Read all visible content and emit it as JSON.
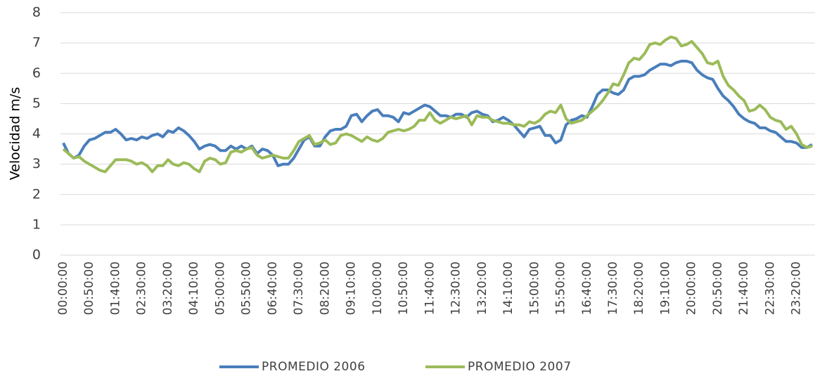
{
  "chart_data": {
    "type": "line",
    "y_label": "Velocidad m/s",
    "categories": [
      "00:00:00",
      null,
      null,
      null,
      null,
      "00:50:00",
      null,
      null,
      null,
      null,
      "01:40:00",
      null,
      null,
      null,
      null,
      "02:30:00",
      null,
      null,
      null,
      null,
      "03:20:00",
      null,
      null,
      null,
      null,
      "04:10:00",
      null,
      null,
      null,
      null,
      "05:00:00",
      null,
      null,
      null,
      null,
      "05:50:00",
      null,
      null,
      null,
      null,
      "06:40:00",
      null,
      null,
      null,
      null,
      "07:30:00",
      null,
      null,
      null,
      null,
      "08:20:00",
      null,
      null,
      null,
      null,
      "09:10:00",
      null,
      null,
      null,
      null,
      "10:00:00",
      null,
      null,
      null,
      null,
      "10:50:00",
      null,
      null,
      null,
      null,
      "11:40:00",
      null,
      null,
      null,
      null,
      "12:30:00",
      null,
      null,
      null,
      null,
      "13:20:00",
      null,
      null,
      null,
      null,
      "14:10:00",
      null,
      null,
      null,
      null,
      "15:00:00",
      null,
      null,
      null,
      null,
      "15:50:00",
      null,
      null,
      null,
      null,
      "16:40:00",
      null,
      null,
      null,
      null,
      "17:30:00",
      null,
      null,
      null,
      null,
      "18:20:00",
      null,
      null,
      null,
      null,
      "19:10:00",
      null,
      null,
      null,
      null,
      "20:00:00",
      null,
      null,
      null,
      null,
      "20:50:00",
      null,
      null,
      null,
      null,
      "21:40:00",
      null,
      null,
      null,
      null,
      "22:30:00",
      null,
      null,
      null,
      null,
      "23:20:00",
      null,
      null,
      null
    ],
    "series": [
      {
        "name": "PROMEDIO 2006",
        "color": "#4a7ebb",
        "values": [
          3.7,
          3.35,
          3.2,
          3.3,
          3.6,
          3.8,
          3.85,
          3.95,
          4.05,
          4.05,
          4.15,
          4.0,
          3.8,
          3.85,
          3.8,
          3.9,
          3.85,
          3.95,
          4.0,
          3.9,
          4.1,
          4.05,
          4.2,
          4.1,
          3.95,
          3.75,
          3.5,
          3.6,
          3.65,
          3.6,
          3.45,
          3.45,
          3.6,
          3.5,
          3.6,
          3.5,
          3.6,
          3.35,
          3.5,
          3.45,
          3.3,
          2.95,
          3.0,
          3.0,
          3.2,
          3.5,
          3.8,
          3.9,
          3.6,
          3.6,
          3.9,
          4.1,
          4.15,
          4.15,
          4.25,
          4.6,
          4.65,
          4.4,
          4.6,
          4.75,
          4.8,
          4.6,
          4.6,
          4.55,
          4.4,
          4.7,
          4.65,
          4.75,
          4.85,
          4.95,
          4.9,
          4.75,
          4.6,
          4.6,
          4.55,
          4.65,
          4.65,
          4.55,
          4.7,
          4.75,
          4.65,
          4.6,
          4.4,
          4.45,
          4.55,
          4.45,
          4.3,
          4.1,
          3.9,
          4.15,
          4.2,
          4.25,
          3.95,
          3.95,
          3.7,
          3.8,
          4.3,
          4.45,
          4.5,
          4.6,
          4.55,
          4.9,
          5.3,
          5.45,
          5.45,
          5.35,
          5.3,
          5.45,
          5.8,
          5.9,
          5.9,
          5.95,
          6.1,
          6.2,
          6.3,
          6.3,
          6.25,
          6.35,
          6.4,
          6.4,
          6.35,
          6.1,
          5.95,
          5.85,
          5.8,
          5.5,
          5.25,
          5.1,
          4.9,
          4.65,
          4.5,
          4.4,
          4.35,
          4.2,
          4.2,
          4.1,
          4.05,
          3.9,
          3.75,
          3.75,
          3.7,
          3.55,
          3.55,
          3.65
        ]
      },
      {
        "name": "PROMEDIO 2007",
        "color": "#9bbb59",
        "values": [
          3.5,
          3.35,
          3.2,
          3.25,
          3.1,
          3.0,
          2.9,
          2.8,
          2.75,
          2.95,
          3.15,
          3.15,
          3.15,
          3.1,
          3.0,
          3.05,
          2.95,
          2.75,
          2.95,
          2.95,
          3.15,
          3.0,
          2.95,
          3.05,
          3.0,
          2.85,
          2.75,
          3.1,
          3.2,
          3.15,
          3.0,
          3.05,
          3.4,
          3.45,
          3.4,
          3.5,
          3.55,
          3.3,
          3.2,
          3.25,
          3.3,
          3.25,
          3.2,
          3.2,
          3.45,
          3.75,
          3.85,
          3.95,
          3.65,
          3.7,
          3.8,
          3.65,
          3.7,
          3.95,
          4.0,
          3.95,
          3.85,
          3.75,
          3.9,
          3.8,
          3.75,
          3.85,
          4.05,
          4.1,
          4.15,
          4.1,
          4.15,
          4.25,
          4.45,
          4.45,
          4.7,
          4.45,
          4.35,
          4.45,
          4.55,
          4.5,
          4.55,
          4.6,
          4.3,
          4.6,
          4.55,
          4.55,
          4.45,
          4.4,
          4.35,
          4.35,
          4.3,
          4.3,
          4.25,
          4.4,
          4.35,
          4.45,
          4.65,
          4.75,
          4.7,
          4.95,
          4.5,
          4.35,
          4.4,
          4.45,
          4.6,
          4.75,
          4.9,
          5.1,
          5.35,
          5.65,
          5.6,
          5.95,
          6.35,
          6.5,
          6.45,
          6.65,
          6.95,
          7.0,
          6.95,
          7.1,
          7.2,
          7.15,
          6.9,
          6.95,
          7.05,
          6.85,
          6.65,
          6.35,
          6.3,
          6.4,
          5.9,
          5.6,
          5.45,
          5.25,
          5.1,
          4.75,
          4.8,
          4.95,
          4.8,
          4.55,
          4.45,
          4.4,
          4.15,
          4.25,
          4.0,
          3.65,
          3.55,
          3.6
        ]
      }
    ],
    "ylim": [
      0,
      8
    ],
    "yticks": [
      0,
      1,
      2,
      3,
      4,
      5,
      6,
      7,
      8
    ],
    "grid": true,
    "legend": "bottom"
  }
}
